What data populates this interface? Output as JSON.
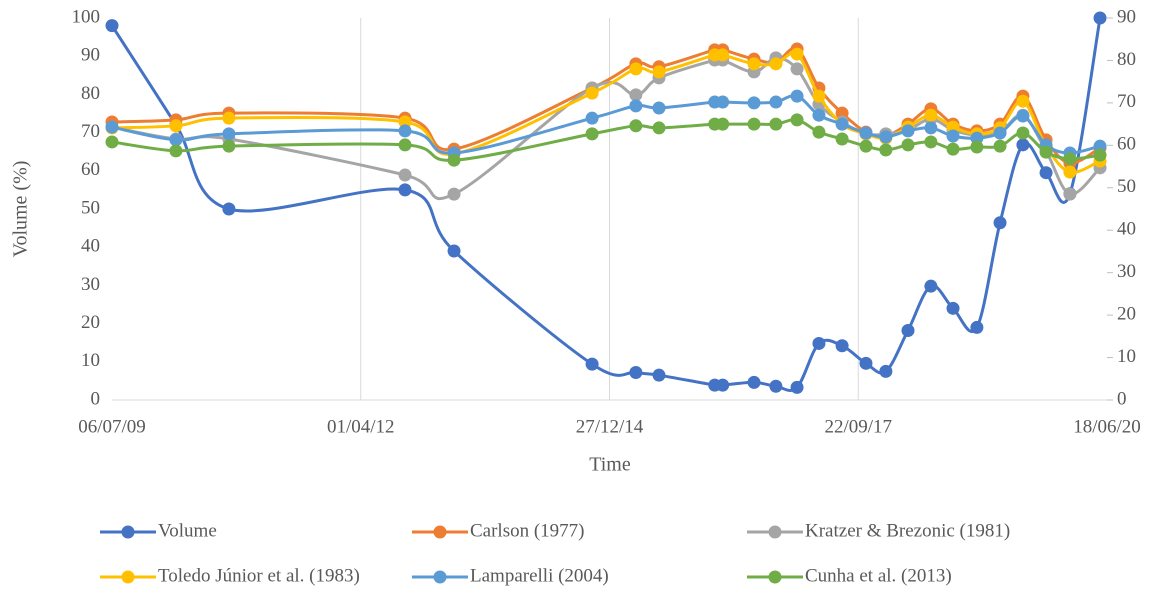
{
  "chart_data": {
    "type": "line",
    "x_label": "Time",
    "y_label": "Volume (%)",
    "x": [
      "2009-07-06",
      "2010-03-20",
      "2010-10-19",
      "2012-09-26",
      "2013-04-11",
      "2014-10-18",
      "2015-04-12",
      "2015-07-14",
      "2016-02-23",
      "2016-03-26",
      "2016-07-30",
      "2016-10-26",
      "2017-01-19",
      "2017-04-17",
      "2017-07-19",
      "2017-10-23",
      "2018-01-11",
      "2018-04-10",
      "2018-07-11",
      "2018-10-08",
      "2019-01-12",
      "2019-04-15",
      "2019-07-16",
      "2019-10-17",
      "2020-01-21",
      "2020-05-21"
    ],
    "xlim": [
      "2009-07-06",
      "2020-06-18"
    ],
    "xticks": [
      {
        "value": "2009-07-06",
        "label": "06/07/09"
      },
      {
        "value": "2012-04-01",
        "label": "01/04/12"
      },
      {
        "value": "2014-12-27",
        "label": "27/12/14"
      },
      {
        "value": "2017-09-22",
        "label": "22/09/17"
      },
      {
        "value": "2020-06-18",
        "label": "18/06/20"
      }
    ],
    "ylim": [
      0,
      100
    ],
    "yticks": [
      0,
      10,
      20,
      30,
      40,
      50,
      60,
      70,
      80,
      90,
      100
    ],
    "y2lim": [
      0,
      90
    ],
    "y2ticks": [
      0,
      10,
      20,
      30,
      40,
      50,
      60,
      70,
      80,
      90
    ],
    "x_grid": true,
    "legend": "bottom",
    "series": [
      {
        "name": "Volume",
        "color": "#4472c4",
        "values": [
          98,
          72,
          50,
          55,
          39,
          9.4,
          7.2,
          6.5,
          3.9,
          3.9,
          4.6,
          3.6,
          3.3,
          14.8,
          14.2,
          9.6,
          7.5,
          18.2,
          29.8,
          24,
          19,
          46.4,
          66.8,
          59.5,
          54,
          100
        ]
      },
      {
        "name": "Carlson (1977)",
        "color": "#ed7d31",
        "axis": "y2",
        "values": [
          65.5,
          66.0,
          67.6,
          66.4,
          59.1,
          73.5,
          79.2,
          78.5,
          82.5,
          82.5,
          80.3,
          79.6,
          82.7,
          73.5,
          67.6,
          63.1,
          62.2,
          65.0,
          68.6,
          65.0,
          63.4,
          65.0,
          71.6,
          61.3,
          55.8,
          59.4
        ]
      },
      {
        "name": "Kratzer & Brezonic (1981)",
        "color": "#a5a5a5",
        "axis": "y2",
        "values": [
          64.3,
          61.5,
          61.5,
          53.0,
          48.5,
          73.5,
          71.9,
          75.9,
          80.1,
          80.1,
          77.3,
          80.6,
          78.0,
          69.7,
          65.5,
          62.7,
          62.7,
          63.6,
          66.2,
          63.6,
          62.4,
          63.1,
          67.1,
          58.7,
          48.5,
          54.7
        ]
      },
      {
        "name": "Toledo Júnior et al. (1983)",
        "color": "#ffc000",
        "axis": "y2",
        "values": [
          64.1,
          64.6,
          66.4,
          65.5,
          58.0,
          72.3,
          78.0,
          77.3,
          81.3,
          81.3,
          79.2,
          79.2,
          81.5,
          71.6,
          65.0,
          62.7,
          61.7,
          64.3,
          67.1,
          64.3,
          62.7,
          64.1,
          70.4,
          59.8,
          53.7,
          56.3
        ]
      },
      {
        "name": "Lamparelli (2004)",
        "color": "#5b9bd5",
        "axis": "y2",
        "values": [
          64.3,
          61.3,
          62.7,
          63.4,
          58.2,
          66.4,
          69.3,
          68.8,
          70.2,
          70.2,
          70.0,
          70.2,
          71.6,
          67.1,
          65.0,
          62.9,
          62.0,
          63.4,
          64.1,
          62.2,
          61.7,
          62.9,
          66.9,
          60.1,
          58.2,
          59.8
        ]
      },
      {
        "name": "Cunha et al. (2013)",
        "color": "#70ad47",
        "axis": "y2",
        "values": [
          60.8,
          58.7,
          59.8,
          60.1,
          56.5,
          62.7,
          64.6,
          64.1,
          65.0,
          65.0,
          65.0,
          65.0,
          66.0,
          63.1,
          61.5,
          59.8,
          58.9,
          60.1,
          60.8,
          59.1,
          59.6,
          59.8,
          62.9,
          58.4,
          56.8,
          57.7
        ]
      }
    ]
  }
}
